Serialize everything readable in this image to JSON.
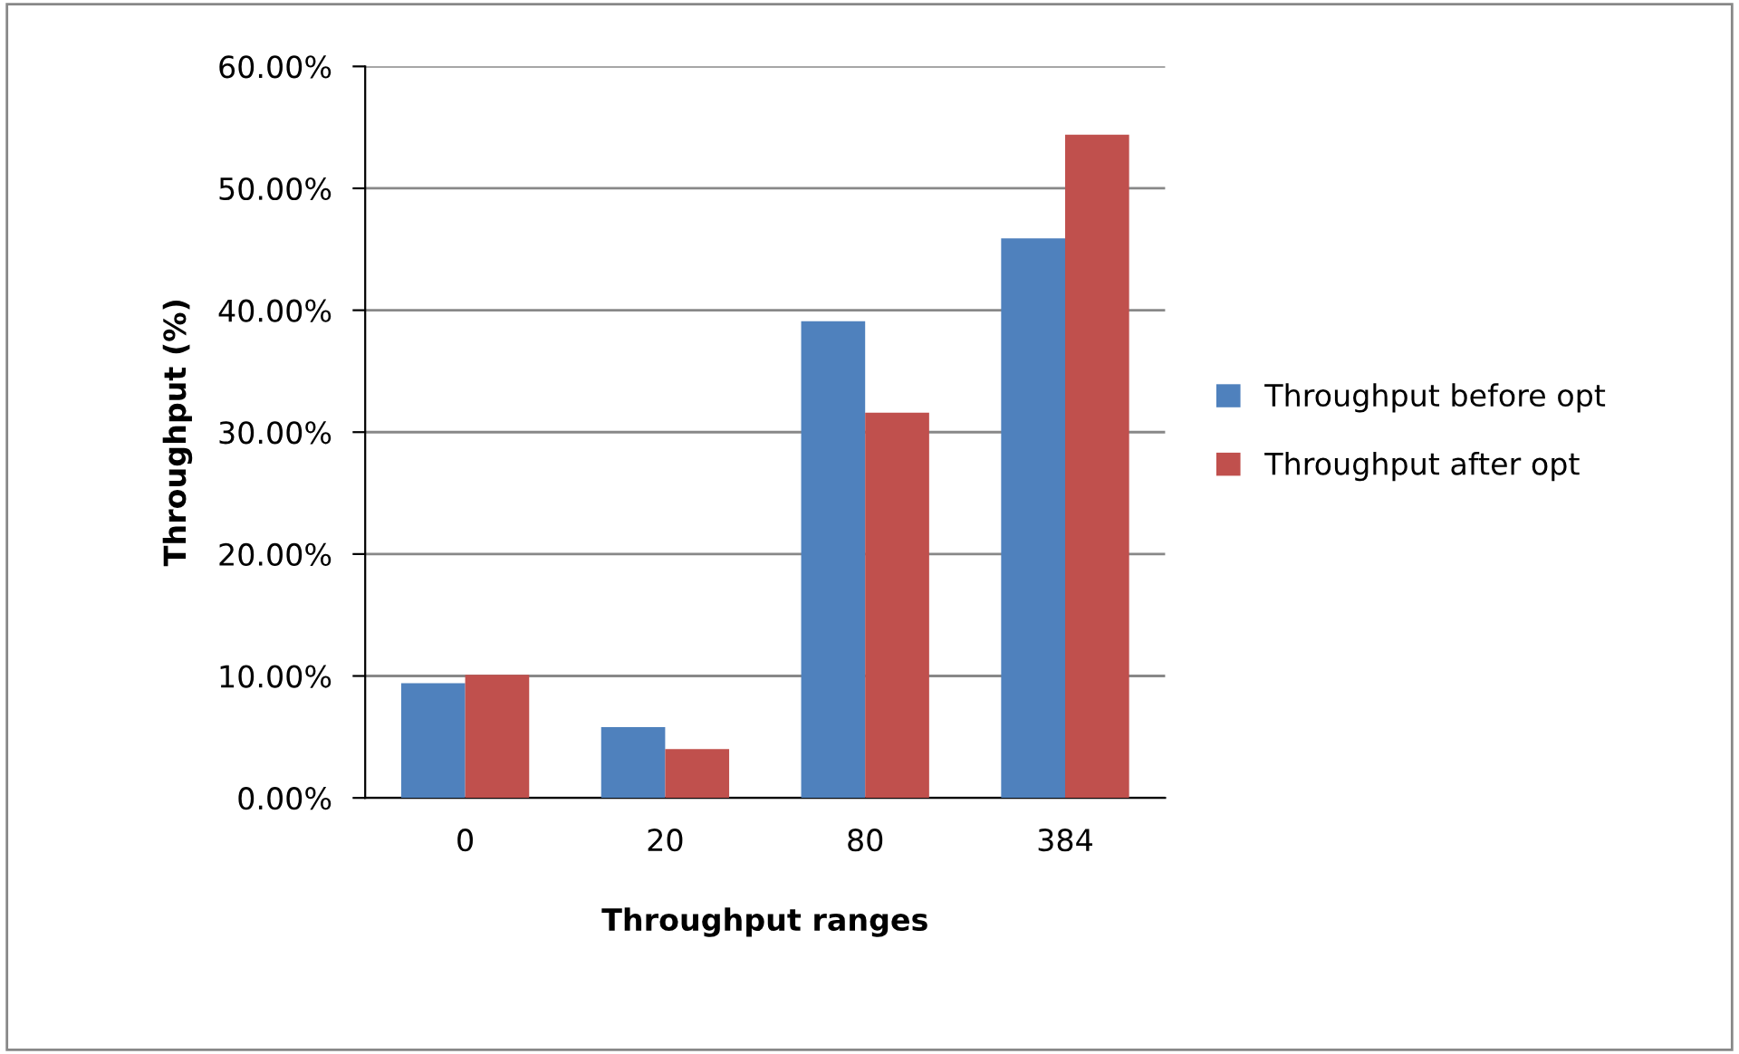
{
  "chart_data": {
    "type": "bar",
    "xlabel": "Throughput ranges",
    "ylabel": "Throughput (%)",
    "categories": [
      "0",
      "20",
      "80",
      "384"
    ],
    "series": [
      {
        "name": "Throughput before opt",
        "color": "#4f81bd",
        "values": [
          9.4,
          5.8,
          39.1,
          45.9
        ]
      },
      {
        "name": "Throughput after opt",
        "color": "#c0504d",
        "values": [
          10.1,
          4.0,
          31.6,
          54.4
        ]
      }
    ],
    "ylim": [
      0,
      60
    ],
    "yticks": [
      {
        "value": 0,
        "label": "0.00%"
      },
      {
        "value": 10,
        "label": "10.00%"
      },
      {
        "value": 20,
        "label": "20.00%"
      },
      {
        "value": 30,
        "label": "30.00%"
      },
      {
        "value": 40,
        "label": "40.00%"
      },
      {
        "value": 50,
        "label": "50.00%"
      },
      {
        "value": 60,
        "label": "60.00%"
      }
    ],
    "grid": "y",
    "legend": "right"
  }
}
